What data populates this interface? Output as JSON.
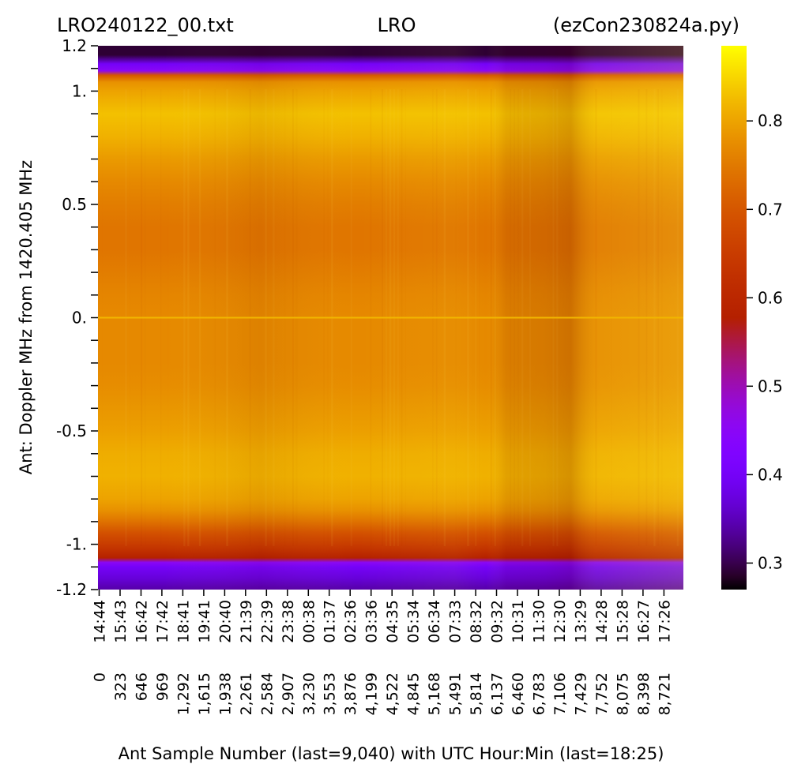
{
  "chart_data": {
    "type": "heatmap",
    "title": {
      "left": "LRO240122_00.txt",
      "center": "LRO",
      "right": "(ezCon230824a.py)"
    },
    "xlabel": "Ant Sample Number (last=9,040) with UTC Hour:Min (last=18:25)",
    "ylabel": "Ant:  Doppler MHz from 1420.405 MHz",
    "x_sample_ticks": [
      "0",
      "323",
      "646",
      "969",
      "1,292",
      "1,615",
      "1,938",
      "2,261",
      "2,584",
      "2,907",
      "3,230",
      "3,553",
      "3,876",
      "4,199",
      "4,522",
      "4,845",
      "5,168",
      "5,491",
      "5,814",
      "6,137",
      "6,460",
      "6,783",
      "7,106",
      "7,429",
      "7,752",
      "8,075",
      "8,398",
      "8,721"
    ],
    "x_time_ticks": [
      "14:44",
      "15:43",
      "16:42",
      "17:42",
      "18:41",
      "19:41",
      "20:40",
      "21:39",
      "22:39",
      "23:38",
      "00:38",
      "01:37",
      "02:36",
      "03:36",
      "04:35",
      "05:34",
      "06:34",
      "07:33",
      "08:32",
      "09:32",
      "10:31",
      "11:30",
      "12:30",
      "13:29",
      "14:28",
      "15:28",
      "16:27",
      "17:26"
    ],
    "x_last": 9040,
    "y_tick_labels": [
      {
        "value": 1.2,
        "label": "1.2"
      },
      {
        "value": 1.0,
        "label": "1."
      },
      {
        "value": 0.5,
        "label": "0.5"
      },
      {
        "value": 0.0,
        "label": "0."
      },
      {
        "value": -0.5,
        "label": "-0.5"
      },
      {
        "value": -1.0,
        "label": "-1."
      },
      {
        "value": -1.2,
        "label": "-1.2"
      }
    ],
    "ylim": [
      -1.2,
      1.2
    ],
    "y_minor_step": 0.1,
    "colorbar": {
      "colormap": "gnuplot",
      "range": [
        0.27,
        0.885
      ],
      "ticks": [
        {
          "value": 0.3,
          "label": "0.3"
        },
        {
          "value": 0.4,
          "label": "0.4"
        },
        {
          "value": 0.5,
          "label": "0.5"
        },
        {
          "value": 0.6,
          "label": "0.6"
        },
        {
          "value": 0.7,
          "label": "0.7"
        },
        {
          "value": 0.8,
          "label": "0.8"
        }
      ]
    },
    "spectrum_profile": [
      [
        1.2,
        0.29
      ],
      [
        1.16,
        0.29
      ],
      [
        1.12,
        0.4
      ],
      [
        1.09,
        0.45
      ],
      [
        1.07,
        0.7
      ],
      [
        1.04,
        0.78
      ],
      [
        1.0,
        0.8
      ],
      [
        0.9,
        0.83
      ],
      [
        0.8,
        0.815
      ],
      [
        0.7,
        0.79
      ],
      [
        0.6,
        0.77
      ],
      [
        0.5,
        0.755
      ],
      [
        0.4,
        0.745
      ],
      [
        0.3,
        0.745
      ],
      [
        0.2,
        0.755
      ],
      [
        0.1,
        0.765
      ],
      [
        0.0,
        0.77
      ],
      [
        -0.1,
        0.77
      ],
      [
        -0.2,
        0.77
      ],
      [
        -0.3,
        0.775
      ],
      [
        -0.4,
        0.785
      ],
      [
        -0.5,
        0.795
      ],
      [
        -0.6,
        0.81
      ],
      [
        -0.7,
        0.815
      ],
      [
        -0.8,
        0.8
      ],
      [
        -0.85,
        0.78
      ],
      [
        -0.9,
        0.74
      ],
      [
        -0.95,
        0.69
      ],
      [
        -1.0,
        0.65
      ],
      [
        -1.03,
        0.62
      ],
      [
        -1.06,
        0.58
      ],
      [
        -1.08,
        0.45
      ],
      [
        -1.1,
        0.4
      ],
      [
        -1.15,
        0.37
      ],
      [
        -1.2,
        0.34
      ]
    ],
    "center_line": {
      "y": 0.0,
      "value": 0.82
    },
    "time_variation": [
      [
        0,
        0.0
      ],
      [
        1000,
        0.0
      ],
      [
        2500,
        -0.01
      ],
      [
        4000,
        0.0
      ],
      [
        5500,
        0.008
      ],
      [
        6000,
        0.0
      ],
      [
        6300,
        -0.015
      ],
      [
        6900,
        -0.02
      ],
      [
        7300,
        -0.03
      ],
      [
        7700,
        0.015
      ],
      [
        9040,
        0.03
      ]
    ]
  }
}
